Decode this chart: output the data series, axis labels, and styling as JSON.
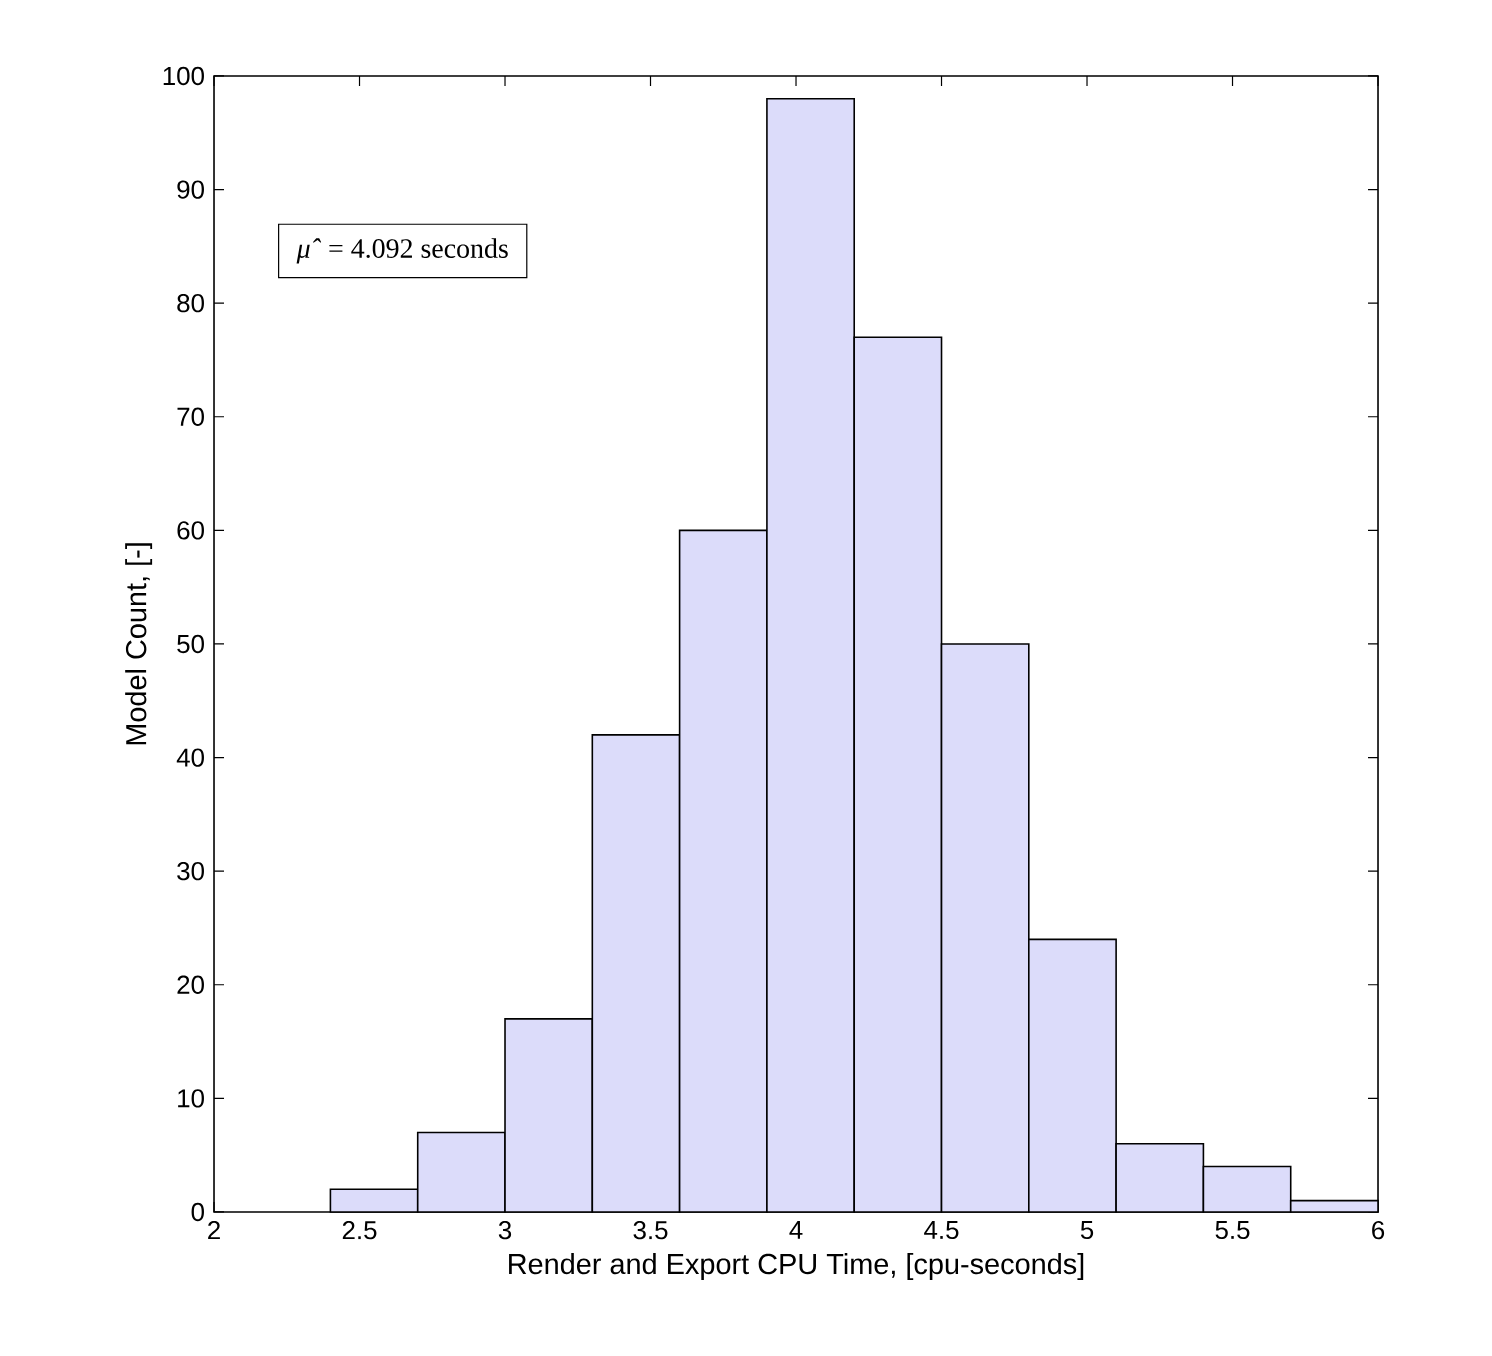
{
  "chart_data": {
    "type": "histogram",
    "xlabel": "Render and Export CPU Time, [cpu-seconds]",
    "ylabel": "Model Count, [-]",
    "annotations": [
      "*μ̂* = 4.092 seconds"
    ],
    "bins": [
      2.4,
      2.7,
      3.0,
      3.3,
      3.6,
      3.9,
      4.2,
      4.5,
      4.8,
      5.1,
      5.4,
      5.7,
      6.0
    ],
    "values": [
      2,
      7,
      17,
      42,
      60,
      98,
      77,
      50,
      24,
      6,
      4,
      1
    ],
    "color": "#dcdcfa",
    "xlim": [
      2,
      6
    ],
    "ylim": [
      0,
      100
    ],
    "xticks": [
      2,
      2.5,
      3,
      3.5,
      4,
      4.5,
      5,
      5.5,
      6
    ],
    "yticks": [
      0,
      10,
      20,
      30,
      40,
      50,
      60,
      70,
      80,
      90,
      100
    ]
  }
}
